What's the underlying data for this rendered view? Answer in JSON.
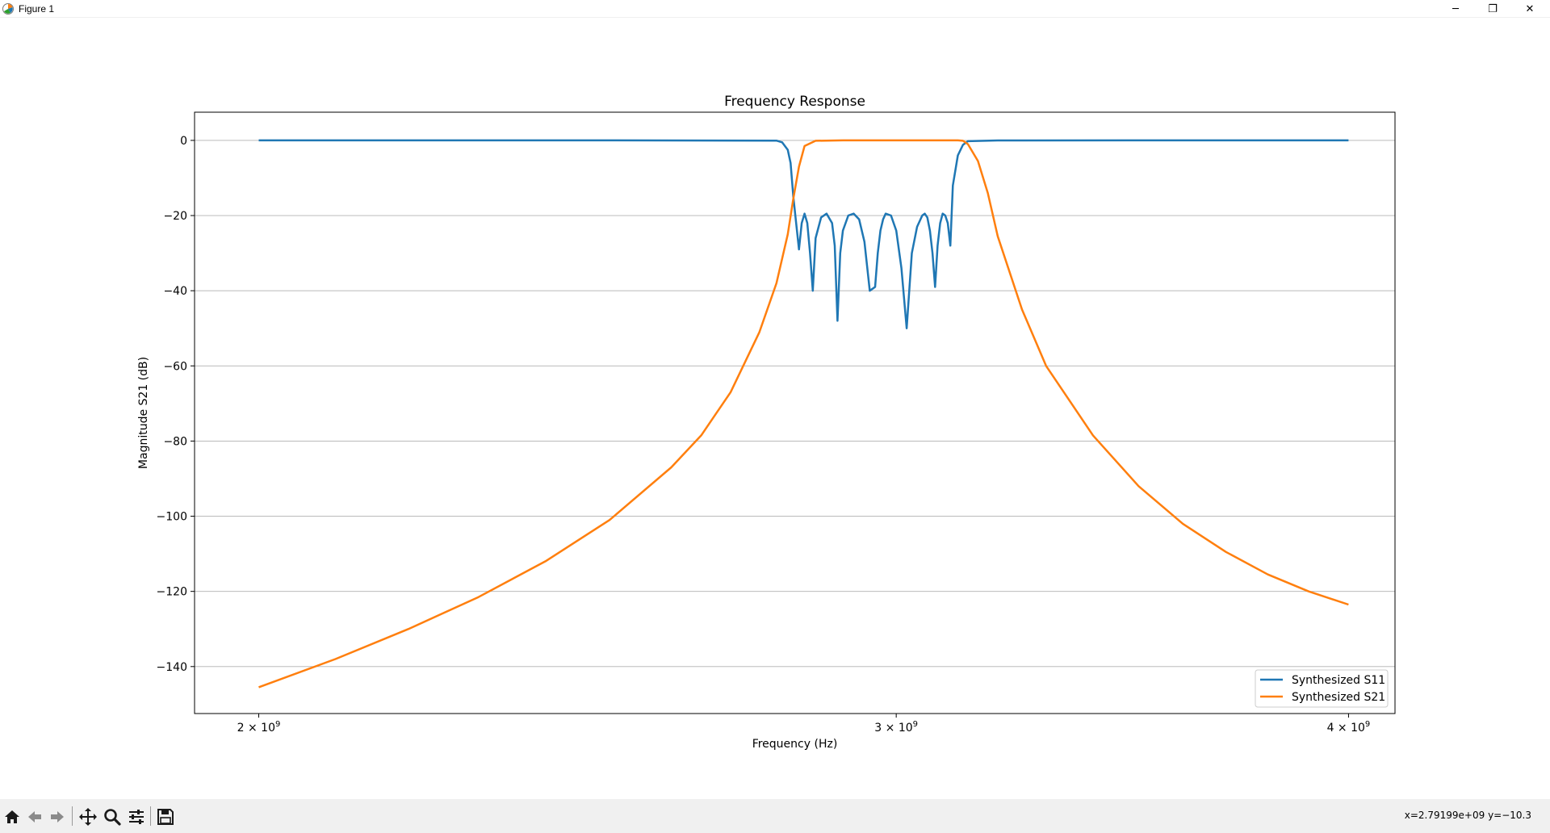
{
  "window": {
    "title": "Figure 1",
    "minimize_glyph": "─",
    "maximize_glyph": "❐",
    "close_glyph": "✕"
  },
  "toolbar": {
    "buttons": [
      "home-icon",
      "back-arrow-icon",
      "forward-arrow-icon",
      "pan-icon",
      "zoom-icon",
      "configure-subplots-icon",
      "save-icon"
    ],
    "coords_readout": "x=2.79199e+09  y=−10.3"
  },
  "chart_data": {
    "type": "line",
    "title": "Frequency Response",
    "xlabel": "Frequency (Hz)",
    "ylabel": "Magnitude S21 (dB)",
    "xscale": "log",
    "xlim": [
      1920000000,
      4120000000
    ],
    "ylim": [
      -152.5,
      7.5
    ],
    "xticks": [
      {
        "value": 2000000000,
        "base": "2 × 10",
        "exp": "9"
      },
      {
        "value": 3000000000,
        "base": "3 × 10",
        "exp": "9"
      },
      {
        "value": 4000000000,
        "base": "4 × 10",
        "exp": "9"
      }
    ],
    "yticks": [
      0,
      -20,
      -40,
      -60,
      -80,
      -100,
      -120,
      -140
    ],
    "ytick_labels": [
      "0",
      "−20",
      "−40",
      "−60",
      "−80",
      "−100",
      "−120",
      "−140"
    ],
    "grid": "y",
    "legend_position": "lower-right",
    "series": [
      {
        "name": "Synthesized S11",
        "color": "#1f77b4",
        "x": [
          2000000000.0,
          2500000000.0,
          2780000000.0,
          2790000000.0,
          2800000000.0,
          2805000000.0,
          2810000000.0,
          2820000000.0,
          2825000000.0,
          2830000000.0,
          2835000000.0,
          2840000000.0,
          2845000000.0,
          2850000000.0,
          2860000000.0,
          2870000000.0,
          2880000000.0,
          2885000000.0,
          2890000000.0,
          2895000000.0,
          2900000000.0,
          2910000000.0,
          2920000000.0,
          2930000000.0,
          2940000000.0,
          2950000000.0,
          2960000000.0,
          2965000000.0,
          2970000000.0,
          2975000000.0,
          2980000000.0,
          2990000000.0,
          3000000000.0,
          3010000000.0,
          3020000000.0,
          3030000000.0,
          3040000000.0,
          3050000000.0,
          3055000000.0,
          3060000000.0,
          3065000000.0,
          3070000000.0,
          3075000000.0,
          3080000000.0,
          3085000000.0,
          3090000000.0,
          3095000000.0,
          3100000000.0,
          3105000000.0,
          3110000000.0,
          3120000000.0,
          3130000000.0,
          3140000000.0,
          3200000000.0,
          3500000000.0,
          4000000000.0
        ],
        "y": [
          0,
          0,
          -0.05,
          -0.5,
          -2.5,
          -6,
          -15,
          -29,
          -22,
          -19.5,
          -22,
          -30,
          -40,
          -26,
          -20.5,
          -19.5,
          -22,
          -28,
          -48,
          -30,
          -24,
          -20,
          -19.5,
          -21,
          -27,
          -40,
          -39,
          -30,
          -24,
          -21,
          -19.5,
          -20,
          -24,
          -34,
          -50,
          -30,
          -23,
          -20,
          -19.5,
          -20.5,
          -24,
          -30,
          -39,
          -28,
          -22,
          -19.5,
          -20,
          -22,
          -28,
          -12,
          -4,
          -1.2,
          -0.2,
          -0.02,
          0,
          0
        ]
      },
      {
        "name": "Synthesized S21",
        "color": "#ff7f0e",
        "x": [
          2000000000.0,
          2100000000.0,
          2200000000.0,
          2300000000.0,
          2400000000.0,
          2500000000.0,
          2600000000.0,
          2650000000.0,
          2700000000.0,
          2750000000.0,
          2780000000.0,
          2800000000.0,
          2810000000.0,
          2820000000.0,
          2830000000.0,
          2850000000.0,
          2900000000.0,
          2950000000.0,
          3000000000.0,
          3050000000.0,
          3100000000.0,
          3120000000.0,
          3130000000.0,
          3140000000.0,
          3160000000.0,
          3180000000.0,
          3200000000.0,
          3250000000.0,
          3300000000.0,
          3400000000.0,
          3500000000.0,
          3600000000.0,
          3700000000.0,
          3800000000.0,
          3900000000.0,
          4000000000.0
        ],
        "y": [
          -145.5,
          -138,
          -130,
          -121.5,
          -112,
          -101,
          -87,
          -78.5,
          -67,
          -51,
          -38,
          -25,
          -15.5,
          -7,
          -1.5,
          -0.1,
          0,
          0,
          0,
          0,
          0,
          0,
          -0.1,
          -1,
          -5.5,
          -14,
          -25.5,
          -45,
          -60,
          -78.5,
          -92,
          -102,
          -109.5,
          -115.5,
          -120,
          -123.5
        ]
      }
    ]
  }
}
